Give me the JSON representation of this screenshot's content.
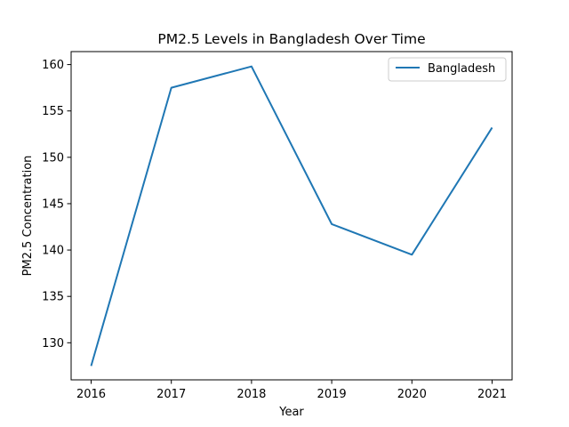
{
  "chart_data": {
    "type": "line",
    "title": "PM2.5 Levels in Bangladesh Over Time",
    "xlabel": "Year",
    "ylabel": "PM2.5 Concentration",
    "x": [
      "2016",
      "2017",
      "2018",
      "2019",
      "2020",
      "2021"
    ],
    "series": [
      {
        "name": "Bangladesh",
        "color": "#1f77b4",
        "values": [
          127.5,
          157.5,
          159.8,
          142.8,
          139.5,
          153.2
        ]
      }
    ],
    "yticks": [
      130,
      135,
      140,
      145,
      150,
      155,
      160
    ],
    "ylim": [
      126.0,
      161.4
    ],
    "grid": false,
    "legend_position": "top-right"
  }
}
